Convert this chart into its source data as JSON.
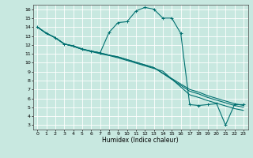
{
  "xlabel": "Humidex (Indice chaleur)",
  "xlim": [
    -0.5,
    23.5
  ],
  "ylim": [
    2.5,
    16.5
  ],
  "xticks": [
    0,
    1,
    2,
    3,
    4,
    5,
    6,
    7,
    8,
    9,
    10,
    11,
    12,
    13,
    14,
    15,
    16,
    17,
    18,
    19,
    20,
    21,
    22,
    23
  ],
  "yticks": [
    3,
    4,
    5,
    6,
    7,
    8,
    9,
    10,
    11,
    12,
    13,
    14,
    15,
    16
  ],
  "bg_color": "#c8e8e0",
  "grid_color": "#ffffff",
  "line_color": "#007070",
  "line1_x": [
    0,
    1,
    2,
    3,
    4,
    5,
    6,
    7,
    8,
    9,
    10,
    11,
    12,
    13,
    14,
    15,
    16,
    17,
    18,
    19,
    20,
    21,
    22,
    23
  ],
  "line1_y": [
    14.0,
    13.3,
    12.8,
    12.1,
    11.9,
    11.55,
    11.3,
    11.1,
    13.4,
    14.5,
    14.6,
    15.8,
    16.2,
    16.0,
    15.0,
    15.0,
    13.3,
    5.3,
    5.2,
    5.3,
    5.4,
    3.0,
    5.3,
    5.3
  ],
  "line2_x": [
    0,
    1,
    2,
    3,
    4,
    5,
    6,
    7,
    8,
    9,
    10,
    11,
    12,
    13,
    17,
    18,
    19,
    20,
    21,
    22,
    23
  ],
  "line2_y": [
    14.0,
    13.3,
    12.8,
    12.1,
    11.85,
    11.5,
    11.3,
    11.1,
    10.85,
    10.65,
    10.35,
    10.05,
    9.75,
    9.45,
    6.8,
    6.5,
    6.1,
    5.8,
    5.5,
    5.2,
    5.0
  ],
  "line3_x": [
    0,
    1,
    2,
    3,
    4,
    5,
    6,
    7,
    8,
    9,
    10,
    11,
    12,
    13,
    14,
    17,
    18,
    19,
    20,
    21,
    22,
    23
  ],
  "line3_y": [
    14.0,
    13.3,
    12.8,
    12.1,
    11.85,
    11.5,
    11.25,
    11.0,
    10.8,
    10.55,
    10.25,
    9.95,
    9.65,
    9.35,
    9.05,
    6.4,
    6.1,
    5.75,
    5.45,
    5.15,
    4.85,
    4.65
  ],
  "line4_x": [
    0,
    1,
    2,
    3,
    4,
    5,
    6,
    7,
    8,
    9,
    10,
    11,
    12,
    13,
    17,
    18,
    19,
    20,
    21,
    22,
    23
  ],
  "line4_y": [
    14.0,
    13.3,
    12.8,
    12.1,
    11.85,
    11.5,
    11.3,
    11.1,
    10.85,
    10.65,
    10.35,
    10.05,
    9.75,
    9.45,
    7.0,
    6.7,
    6.3,
    6.0,
    5.7,
    5.4,
    5.2
  ]
}
